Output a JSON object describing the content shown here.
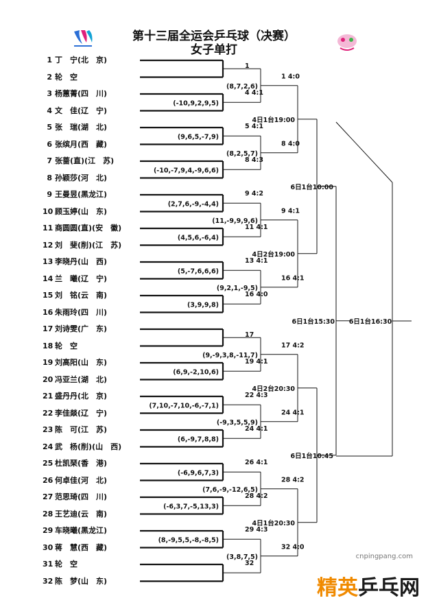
{
  "title": "第十三届全运会乒乓球（决赛）",
  "subtitle": "女子单打",
  "players": [
    {
      "num": "1",
      "name": "丁　宁(北　京)"
    },
    {
      "num": "2",
      "name": "轮　空"
    },
    {
      "num": "3",
      "name": "杨蕙菁(四　川)"
    },
    {
      "num": "4",
      "name": "文　佳(辽　宁)"
    },
    {
      "num": "5",
      "name": "张　瑞(湖　北)"
    },
    {
      "num": "6",
      "name": "张缤月(西　藏)"
    },
    {
      "num": "7",
      "name": "张蔷(直)(江　苏)"
    },
    {
      "num": "8",
      "name": "孙颖莎(河　北)"
    },
    {
      "num": "9",
      "name": "王曼昱(黑龙江)"
    },
    {
      "num": "10",
      "name": "顾玉婷(山　东)"
    },
    {
      "num": "11",
      "name": "商圆圆(直)(安　徽)"
    },
    {
      "num": "12",
      "name": "刘　斐(削)(江　苏)"
    },
    {
      "num": "13",
      "name": "李晓丹(山　西)"
    },
    {
      "num": "14",
      "name": "兰　曦(辽　宁)"
    },
    {
      "num": "15",
      "name": "刘　铭(云　南)"
    },
    {
      "num": "16",
      "name": "朱雨玲(四　川)"
    },
    {
      "num": "17",
      "name": "刘诗雯(广　东)"
    },
    {
      "num": "18",
      "name": "轮　空"
    },
    {
      "num": "19",
      "name": "刘高阳(山　东)"
    },
    {
      "num": "20",
      "name": "冯亚兰(湖　北)"
    },
    {
      "num": "21",
      "name": "盛丹丹(北　京)"
    },
    {
      "num": "22",
      "name": "李佳燚(辽　宁)"
    },
    {
      "num": "23",
      "name": "陈　可(江　苏)"
    },
    {
      "num": "24",
      "name": "武　杨(削)(山　西)"
    },
    {
      "num": "25",
      "name": "杜凯琹(香　港)"
    },
    {
      "num": "26",
      "name": "何卓佳(河　北)"
    },
    {
      "num": "27",
      "name": "范思琦(四　川)"
    },
    {
      "num": "28",
      "name": "王艺迪(云　南)"
    },
    {
      "num": "29",
      "name": "车晓曦(黑龙江)"
    },
    {
      "num": "30",
      "name": "蒋　慧(西　藏)"
    },
    {
      "num": "31",
      "name": "轮　空"
    },
    {
      "num": "32",
      "name": "陈　梦(山　东)"
    }
  ],
  "round1": [
    {
      "winner": "1",
      "scores": ""
    },
    {
      "winner": "4  4:1",
      "scores": "(-10,9,2,9,5)"
    },
    {
      "winner": "5  4:1",
      "scores": "(9,6,5,-7,9)"
    },
    {
      "winner": "8  4:3",
      "scores": "(-10,-7,9,4,-9,6,6)"
    },
    {
      "winner": "9  4:2",
      "scores": "(2,7,6,-9,-4,4)"
    },
    {
      "winner": "11  4:1",
      "scores": "(4,5,6,-6,4)"
    },
    {
      "winner": "13  4:1",
      "scores": "(5,-7,6,6,6)"
    },
    {
      "winner": "16  4:0",
      "scores": "(3,9,9,8)"
    },
    {
      "winner": "17",
      "scores": ""
    },
    {
      "winner": "19  4:1",
      "scores": "(6,9,-2,10,6)"
    },
    {
      "winner": "22  4:3",
      "scores": "(7,10,-7,10,-6,-7,1)"
    },
    {
      "winner": "24  4:1",
      "scores": "(6,-9,7,8,8)"
    },
    {
      "winner": "26  4:1",
      "scores": "(-6,9,6,7,3)"
    },
    {
      "winner": "28  4:2",
      "scores": "(-6,3,7,-5,13,3)"
    },
    {
      "winner": "29  4:3",
      "scores": "(8,-9,5,5,-8,-8,5)"
    },
    {
      "winner": "32",
      "scores": ""
    }
  ],
  "round2": [
    {
      "winner": "1  4:0",
      "scores": "(8,7,2,6)"
    },
    {
      "winner": "8  4:0",
      "scores": "(8,2,5,7)"
    },
    {
      "winner": "9  4:1",
      "scores": "(11,-9,9,9,6)"
    },
    {
      "winner": "16  4:1",
      "scores": "(9,2,1,-9,5)"
    },
    {
      "winner": "17  4:2",
      "scores": "(9,-9,3,8,-11,7)"
    },
    {
      "winner": "24  4:1",
      "scores": "(-9,3,5,5,9)"
    },
    {
      "winner": "28  4:2",
      "scores": "(7,6,-9,-12,6,5)"
    },
    {
      "winner": "32  4:0",
      "scores": "(3,8,7,5)"
    }
  ],
  "round3": [
    {
      "time": "4日1台19:00"
    },
    {
      "time": "4日2台19:00"
    },
    {
      "time": "4日2台20:30"
    },
    {
      "time": "4日1台20:30"
    }
  ],
  "round4": [
    {
      "time": "6日1台10:00"
    },
    {
      "time": "6日1台10:45"
    }
  ],
  "semi": {
    "time": "6日1台15:30"
  },
  "final": {
    "time": "6日1台16:30"
  },
  "watermark": {
    "url": "cnpingpang.com",
    "text": "精英乒乓网"
  },
  "colors": {
    "line": "#111111",
    "logo_blue": "#2b6fd6",
    "logo_pink": "#e0207a",
    "wm_orange": "#f08a00"
  }
}
